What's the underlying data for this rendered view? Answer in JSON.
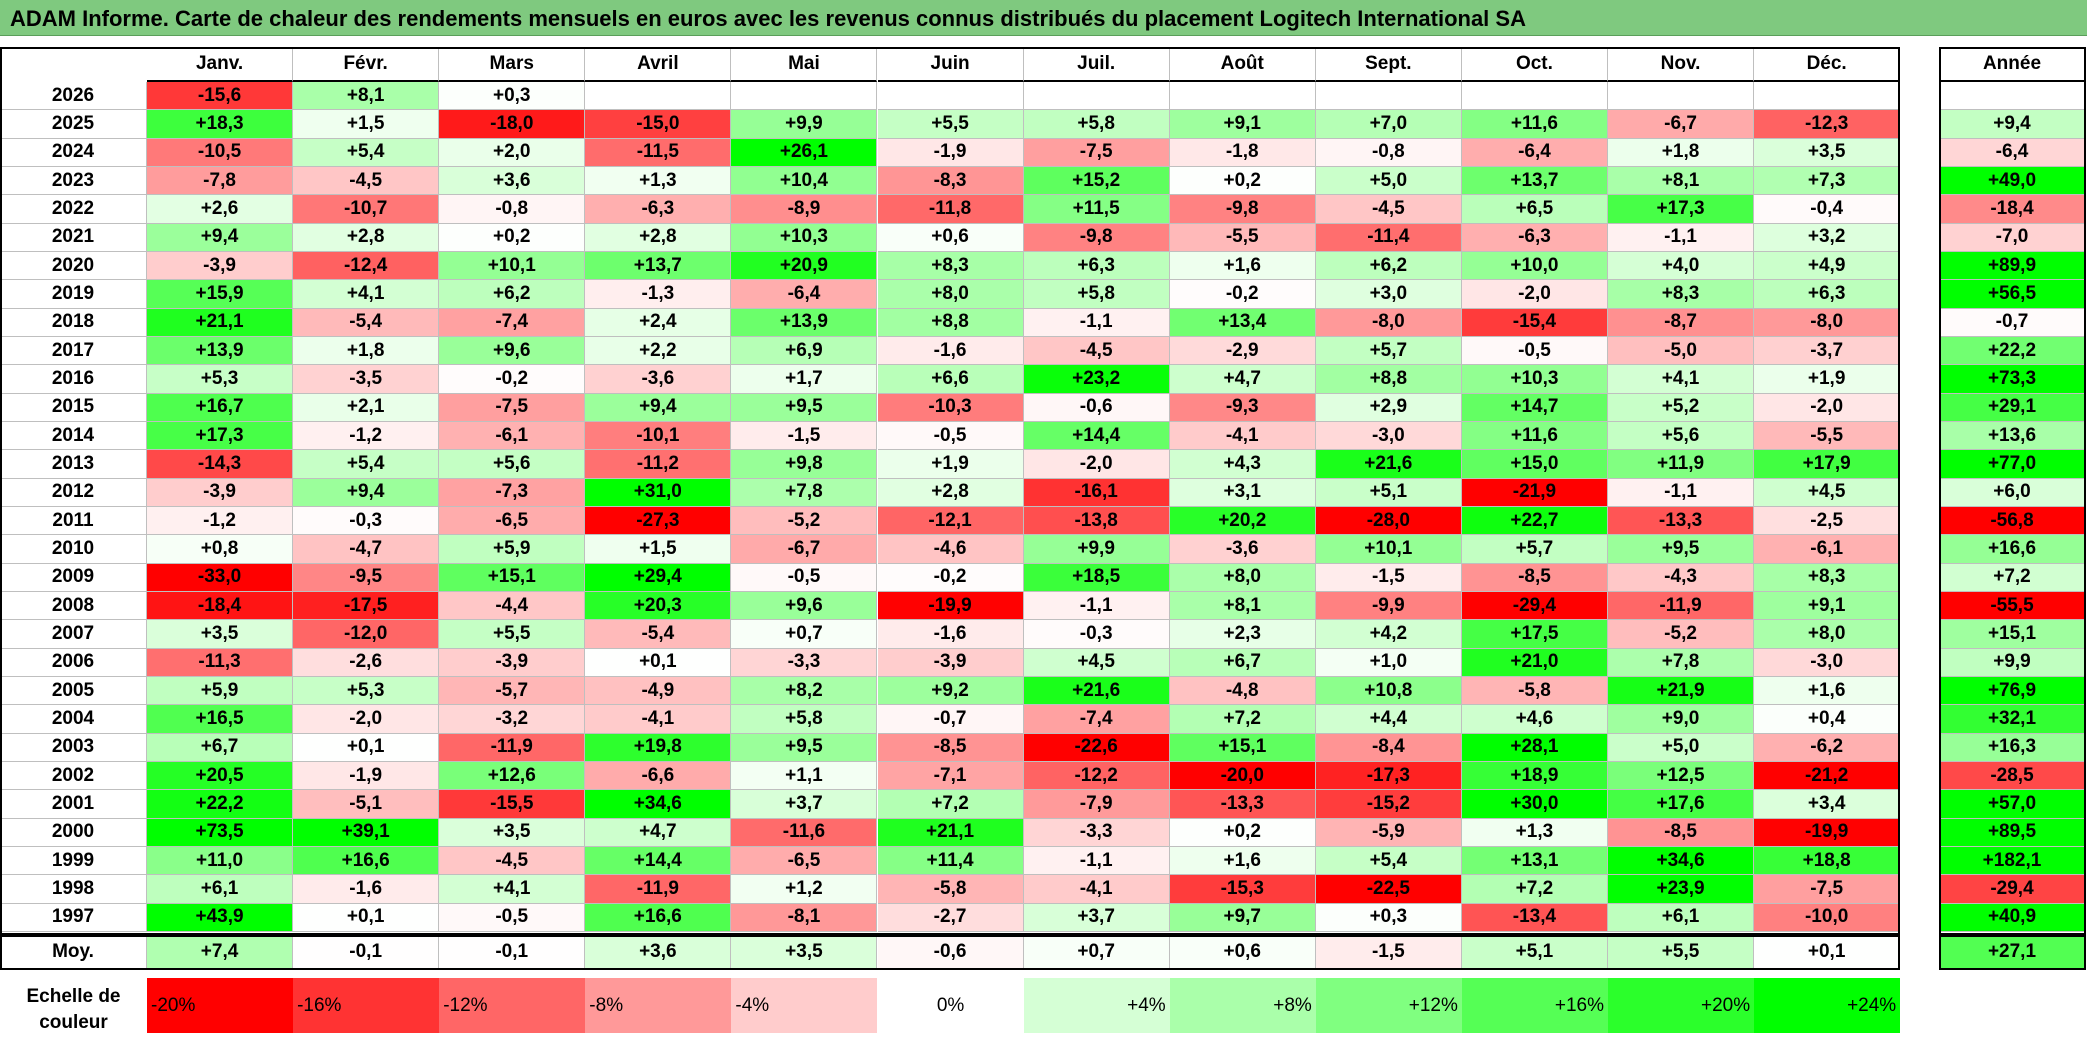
{
  "title": "ADAM Informe. Carte de chaleur des rendements mensuels en euros avec les revenus connus distribués du placement Logitech International SA",
  "columns": [
    "Janv.",
    "Févr.",
    "Mars",
    "Avril",
    "Mai",
    "Juin",
    "Juil.",
    "Août",
    "Sept.",
    "Oct.",
    "Nov.",
    "Déc."
  ],
  "year_header": "Année",
  "avg_label": "Moy.",
  "scale_label_line1": "Echelle de",
  "scale_label_line2": "couleur",
  "colors": {
    "title_bg": "#7fc97f",
    "neg_max": "#ff0000",
    "zero": "#ffffff",
    "pos_max": "#00ff00"
  },
  "scale": [
    {
      "label": "-20%",
      "value": -20
    },
    {
      "label": "-16%",
      "value": -16
    },
    {
      "label": "-12%",
      "value": -12
    },
    {
      "label": "-8%",
      "value": -8
    },
    {
      "label": "-4%",
      "value": -4
    },
    {
      "label": "0%",
      "value": 0
    },
    {
      "label": "+4%",
      "value": 4
    },
    {
      "label": "+8%",
      "value": 8
    },
    {
      "label": "+12%",
      "value": 12
    },
    {
      "label": "+16%",
      "value": 16
    },
    {
      "label": "+20%",
      "value": 20
    },
    {
      "label": "+24%",
      "value": 24
    }
  ],
  "chart_data": {
    "type": "heatmap",
    "title": "ADAM Informe. Carte de chaleur des rendements mensuels en euros avec les revenus connus distribués du placement Logitech International SA",
    "rows": [
      {
        "year": "2026",
        "months": [
          "-15,6",
          "+8,1",
          "+0,3",
          "",
          "",
          "",
          "",
          "",
          "",
          "",
          "",
          ""
        ],
        "annual": ""
      },
      {
        "year": "2025",
        "months": [
          "+18,3",
          "+1,5",
          "-18,0",
          "-15,0",
          "+9,9",
          "+5,5",
          "+5,8",
          "+9,1",
          "+7,0",
          "+11,6",
          "-6,7",
          "-12,3"
        ],
        "annual": "+9,4"
      },
      {
        "year": "2024",
        "months": [
          "-10,5",
          "+5,4",
          "+2,0",
          "-11,5",
          "+26,1",
          "-1,9",
          "-7,5",
          "-1,8",
          "-0,8",
          "-6,4",
          "+1,8",
          "+3,5"
        ],
        "annual": "-6,4"
      },
      {
        "year": "2023",
        "months": [
          "-7,8",
          "-4,5",
          "+3,6",
          "+1,3",
          "+10,4",
          "-8,3",
          "+15,2",
          "+0,2",
          "+5,0",
          "+13,7",
          "+8,1",
          "+7,3"
        ],
        "annual": "+49,0"
      },
      {
        "year": "2022",
        "months": [
          "+2,6",
          "-10,7",
          "-0,8",
          "-6,3",
          "-8,9",
          "-11,8",
          "+11,5",
          "-9,8",
          "-4,5",
          "+6,5",
          "+17,3",
          "-0,4"
        ],
        "annual": "-18,4"
      },
      {
        "year": "2021",
        "months": [
          "+9,4",
          "+2,8",
          "+0,2",
          "+2,8",
          "+10,3",
          "+0,6",
          "-9,8",
          "-5,5",
          "-11,4",
          "-6,3",
          "-1,1",
          "+3,2"
        ],
        "annual": "-7,0"
      },
      {
        "year": "2020",
        "months": [
          "-3,9",
          "-12,4",
          "+10,1",
          "+13,7",
          "+20,9",
          "+8,3",
          "+6,3",
          "+1,6",
          "+6,2",
          "+10,0",
          "+4,0",
          "+4,9"
        ],
        "annual": "+89,9"
      },
      {
        "year": "2019",
        "months": [
          "+15,9",
          "+4,1",
          "+6,2",
          "-1,3",
          "-6,4",
          "+8,0",
          "+5,8",
          "-0,2",
          "+3,0",
          "-2,0",
          "+8,3",
          "+6,3"
        ],
        "annual": "+56,5"
      },
      {
        "year": "2018",
        "months": [
          "+21,1",
          "-5,4",
          "-7,4",
          "+2,4",
          "+13,9",
          "+8,8",
          "-1,1",
          "+13,4",
          "-8,0",
          "-15,4",
          "-8,7",
          "-8,0"
        ],
        "annual": "-0,7"
      },
      {
        "year": "2017",
        "months": [
          "+13,9",
          "+1,8",
          "+9,6",
          "+2,2",
          "+6,9",
          "-1,6",
          "-4,5",
          "-2,9",
          "+5,7",
          "-0,5",
          "-5,0",
          "-3,7"
        ],
        "annual": "+22,2"
      },
      {
        "year": "2016",
        "months": [
          "+5,3",
          "-3,5",
          "-0,2",
          "-3,6",
          "+1,7",
          "+6,6",
          "+23,2",
          "+4,7",
          "+8,8",
          "+10,3",
          "+4,1",
          "+1,9"
        ],
        "annual": "+73,3"
      },
      {
        "year": "2015",
        "months": [
          "+16,7",
          "+2,1",
          "-7,5",
          "+9,4",
          "+9,5",
          "-10,3",
          "-0,6",
          "-9,3",
          "+2,9",
          "+14,7",
          "+5,2",
          "-2,0"
        ],
        "annual": "+29,1"
      },
      {
        "year": "2014",
        "months": [
          "+17,3",
          "-1,2",
          "-6,1",
          "-10,1",
          "-1,5",
          "-0,5",
          "+14,4",
          "-4,1",
          "-3,0",
          "+11,6",
          "+5,6",
          "-5,5"
        ],
        "annual": "+13,6"
      },
      {
        "year": "2013",
        "months": [
          "-14,3",
          "+5,4",
          "+5,6",
          "-11,2",
          "+9,8",
          "+1,9",
          "-2,0",
          "+4,3",
          "+21,6",
          "+15,0",
          "+11,9",
          "+17,9"
        ],
        "annual": "+77,0"
      },
      {
        "year": "2012",
        "months": [
          "-3,9",
          "+9,4",
          "-7,3",
          "+31,0",
          "+7,8",
          "+2,8",
          "-16,1",
          "+3,1",
          "+5,1",
          "-21,9",
          "-1,1",
          "+4,5"
        ],
        "annual": "+6,0"
      },
      {
        "year": "2011",
        "months": [
          "-1,2",
          "-0,3",
          "-6,5",
          "-27,3",
          "-5,2",
          "-12,1",
          "-13,8",
          "+20,2",
          "-28,0",
          "+22,7",
          "-13,3",
          "-2,5"
        ],
        "annual": "-56,8"
      },
      {
        "year": "2010",
        "months": [
          "+0,8",
          "-4,7",
          "+5,9",
          "+1,5",
          "-6,7",
          "-4,6",
          "+9,9",
          "-3,6",
          "+10,1",
          "+5,7",
          "+9,5",
          "-6,1"
        ],
        "annual": "+16,6"
      },
      {
        "year": "2009",
        "months": [
          "-33,0",
          "-9,5",
          "+15,1",
          "+29,4",
          "-0,5",
          "-0,2",
          "+18,5",
          "+8,0",
          "-1,5",
          "-8,5",
          "-4,3",
          "+8,3"
        ],
        "annual": "+7,2"
      },
      {
        "year": "2008",
        "months": [
          "-18,4",
          "-17,5",
          "-4,4",
          "+20,3",
          "+9,6",
          "-19,9",
          "-1,1",
          "+8,1",
          "-9,9",
          "-29,4",
          "-11,9",
          "+9,1"
        ],
        "annual": "-55,5"
      },
      {
        "year": "2007",
        "months": [
          "+3,5",
          "-12,0",
          "+5,5",
          "-5,4",
          "+0,7",
          "-1,6",
          "-0,3",
          "+2,3",
          "+4,2",
          "+17,5",
          "-5,2",
          "+8,0"
        ],
        "annual": "+15,1"
      },
      {
        "year": "2006",
        "months": [
          "-11,3",
          "-2,6",
          "-3,9",
          "+0,1",
          "-3,3",
          "-3,9",
          "+4,5",
          "+6,7",
          "+1,0",
          "+21,0",
          "+7,8",
          "-3,0"
        ],
        "annual": "+9,9"
      },
      {
        "year": "2005",
        "months": [
          "+5,9",
          "+5,3",
          "-5,7",
          "-4,9",
          "+8,2",
          "+9,2",
          "+21,6",
          "-4,8",
          "+10,8",
          "-5,8",
          "+21,9",
          "+1,6"
        ],
        "annual": "+76,9"
      },
      {
        "year": "2004",
        "months": [
          "+16,5",
          "-2,0",
          "-3,2",
          "-4,1",
          "+5,8",
          "-0,7",
          "-7,4",
          "+7,2",
          "+4,4",
          "+4,6",
          "+9,0",
          "+0,4"
        ],
        "annual": "+32,1"
      },
      {
        "year": "2003",
        "months": [
          "+6,7",
          "+0,1",
          "-11,9",
          "+19,8",
          "+9,5",
          "-8,5",
          "-22,6",
          "+15,1",
          "-8,4",
          "+28,1",
          "+5,0",
          "-6,2"
        ],
        "annual": "+16,3"
      },
      {
        "year": "2002",
        "months": [
          "+20,5",
          "-1,9",
          "+12,6",
          "-6,6",
          "+1,1",
          "-7,1",
          "-12,2",
          "-20,0",
          "-17,3",
          "+18,9",
          "+12,5",
          "-21,2"
        ],
        "annual": "-28,5"
      },
      {
        "year": "2001",
        "months": [
          "+22,2",
          "-5,1",
          "-15,5",
          "+34,6",
          "+3,7",
          "+7,2",
          "-7,9",
          "-13,3",
          "-15,2",
          "+30,0",
          "+17,6",
          "+3,4"
        ],
        "annual": "+57,0"
      },
      {
        "year": "2000",
        "months": [
          "+73,5",
          "+39,1",
          "+3,5",
          "+4,7",
          "-11,6",
          "+21,1",
          "-3,3",
          "+0,2",
          "-5,9",
          "+1,3",
          "-8,5",
          "-19,9"
        ],
        "annual": "+89,5"
      },
      {
        "year": "1999",
        "months": [
          "+11,0",
          "+16,6",
          "-4,5",
          "+14,4",
          "-6,5",
          "+11,4",
          "-1,1",
          "+1,6",
          "+5,4",
          "+13,1",
          "+34,6",
          "+18,8"
        ],
        "annual": "+182,1"
      },
      {
        "year": "1998",
        "months": [
          "+6,1",
          "-1,6",
          "+4,1",
          "-11,9",
          "+1,2",
          "-5,8",
          "-4,1",
          "-15,3",
          "-22,5",
          "+7,2",
          "+23,9",
          "-7,5"
        ],
        "annual": "-29,4"
      },
      {
        "year": "1997",
        "months": [
          "+43,9",
          "+0,1",
          "-0,5",
          "+16,6",
          "-8,1",
          "-2,7",
          "+3,7",
          "+9,7",
          "+0,3",
          "-13,4",
          "+6,1",
          "-10,0"
        ],
        "annual": "+40,9"
      }
    ],
    "averages": [
      "+7,4",
      "-0,1",
      "-0,1",
      "+3,6",
      "+3,5",
      "-0,6",
      "+0,7",
      "+0,6",
      "-1,5",
      "+5,1",
      "+5,5",
      "+0,1"
    ],
    "average_annual": "+27,1"
  }
}
